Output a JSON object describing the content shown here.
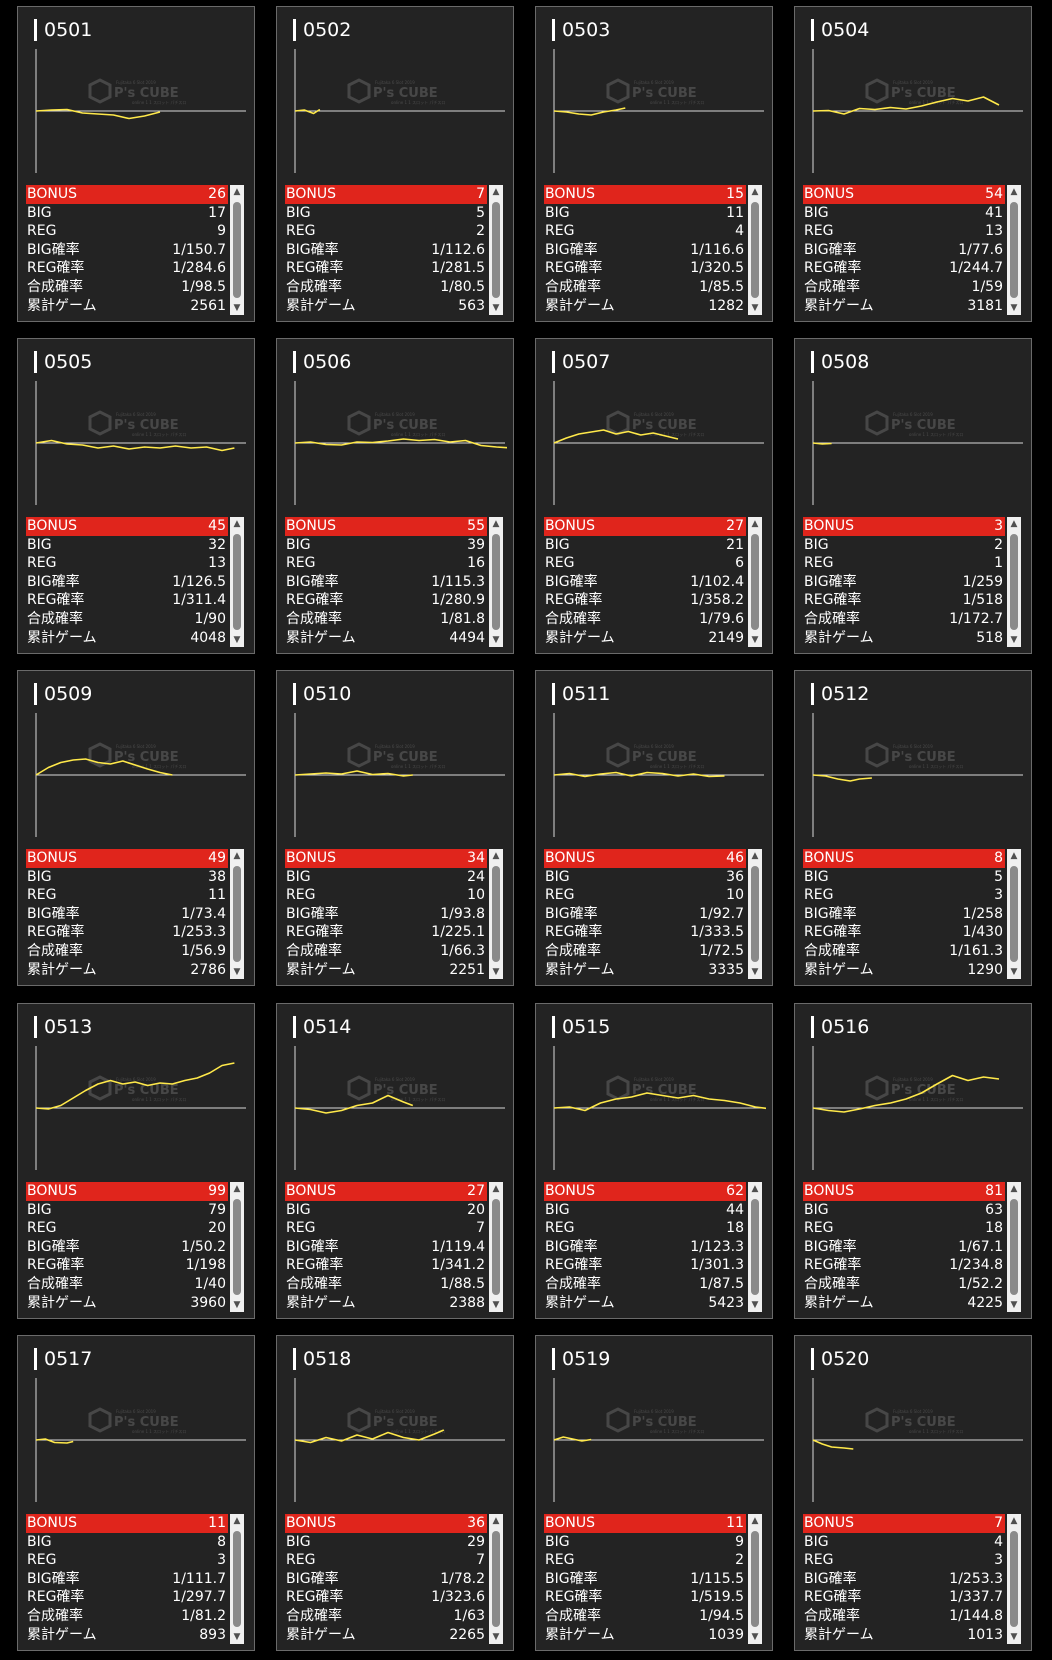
{
  "watermark": {
    "top": "Fujitaka 6 Slot 2019",
    "brand": "P's CUBE",
    "bottom": "online 1 1 スロット パチスロ"
  },
  "line_color": "#ffe94a",
  "bonus_color": "#e0251c",
  "labels": [
    "BONUS",
    "BIG",
    "REG",
    "BIG確率",
    "REG確率",
    "合成確率",
    "累計ゲーム"
  ],
  "scroll_up_icon": "▲",
  "scroll_down_icon": "▼",
  "machines": [
    {
      "id": "0501",
      "stats": [
        "26",
        "17",
        "9",
        "1/150.7",
        "1/284.6",
        "1/98.5",
        "2561"
      ],
      "curve": [
        [
          0,
          0
        ],
        [
          5,
          0.02
        ],
        [
          10,
          0.03
        ],
        [
          15,
          -0.04
        ],
        [
          20,
          -0.06
        ],
        [
          25,
          -0.08
        ],
        [
          30,
          -0.15
        ],
        [
          35,
          -0.1
        ],
        [
          40,
          -0.02
        ]
      ]
    },
    {
      "id": "0502",
      "stats": [
        "7",
        "5",
        "2",
        "1/112.6",
        "1/281.5",
        "1/80.5",
        "563"
      ],
      "curve": [
        [
          0,
          0
        ],
        [
          3,
          0.02
        ],
        [
          6,
          -0.05
        ],
        [
          8,
          0.03
        ]
      ]
    },
    {
      "id": "0503",
      "stats": [
        "15",
        "11",
        "4",
        "1/116.6",
        "1/320.5",
        "1/85.5",
        "1282"
      ],
      "curve": [
        [
          0,
          0
        ],
        [
          4,
          -0.02
        ],
        [
          8,
          -0.06
        ],
        [
          12,
          -0.08
        ],
        [
          16,
          -0.02
        ],
        [
          20,
          0.02
        ],
        [
          23,
          0.06
        ]
      ]
    },
    {
      "id": "0504",
      "stats": [
        "54",
        "41",
        "13",
        "1/77.6",
        "1/244.7",
        "1/59",
        "3181"
      ],
      "curve": [
        [
          0,
          0
        ],
        [
          5,
          0.01
        ],
        [
          10,
          -0.06
        ],
        [
          15,
          0.05
        ],
        [
          20,
          0.03
        ],
        [
          25,
          0.07
        ],
        [
          30,
          0.04
        ],
        [
          35,
          0.1
        ],
        [
          40,
          0.18
        ],
        [
          45,
          0.25
        ],
        [
          50,
          0.2
        ],
        [
          55,
          0.28
        ],
        [
          60,
          0.12
        ]
      ]
    },
    {
      "id": "0505",
      "stats": [
        "45",
        "32",
        "13",
        "1/126.5",
        "1/311.4",
        "1/90",
        "4048"
      ],
      "curve": [
        [
          0,
          0
        ],
        [
          5,
          0.05
        ],
        [
          10,
          -0.02
        ],
        [
          15,
          -0.04
        ],
        [
          20,
          -0.1
        ],
        [
          25,
          -0.06
        ],
        [
          30,
          -0.12
        ],
        [
          35,
          -0.08
        ],
        [
          40,
          -0.1
        ],
        [
          45,
          -0.06
        ],
        [
          50,
          -0.1
        ],
        [
          55,
          -0.08
        ],
        [
          60,
          -0.15
        ],
        [
          64,
          -0.1
        ]
      ]
    },
    {
      "id": "0506",
      "stats": [
        "55",
        "39",
        "16",
        "1/115.3",
        "1/280.9",
        "1/81.8",
        "4494"
      ],
      "curve": [
        [
          0,
          0
        ],
        [
          5,
          0.02
        ],
        [
          10,
          -0.03
        ],
        [
          15,
          -0.04
        ],
        [
          20,
          0.02
        ],
        [
          25,
          0.01
        ],
        [
          30,
          0.04
        ],
        [
          35,
          0.08
        ],
        [
          40,
          0.05
        ],
        [
          45,
          0.07
        ],
        [
          50,
          0.02
        ],
        [
          55,
          0.05
        ],
        [
          60,
          -0.05
        ],
        [
          65,
          -0.08
        ],
        [
          70,
          -0.1
        ],
        [
          73,
          -0.06
        ]
      ]
    },
    {
      "id": "0507",
      "stats": [
        "27",
        "21",
        "6",
        "1/102.4",
        "1/358.2",
        "1/79.6",
        "2149"
      ],
      "curve": [
        [
          0,
          0
        ],
        [
          4,
          0.1
        ],
        [
          8,
          0.18
        ],
        [
          12,
          0.22
        ],
        [
          16,
          0.26
        ],
        [
          20,
          0.18
        ],
        [
          24,
          0.23
        ],
        [
          28,
          0.16
        ],
        [
          32,
          0.2
        ],
        [
          36,
          0.14
        ],
        [
          40,
          0.08
        ]
      ]
    },
    {
      "id": "0508",
      "stats": [
        "3",
        "2",
        "1",
        "1/259",
        "1/518",
        "1/172.7",
        "518"
      ],
      "curve": [
        [
          0,
          0
        ],
        [
          3,
          -0.02
        ],
        [
          6,
          -0.01
        ]
      ]
    },
    {
      "id": "0509",
      "stats": [
        "49",
        "38",
        "11",
        "1/73.4",
        "1/253.3",
        "1/56.9",
        "2786"
      ],
      "curve": [
        [
          0,
          0
        ],
        [
          4,
          0.15
        ],
        [
          8,
          0.25
        ],
        [
          12,
          0.3
        ],
        [
          16,
          0.32
        ],
        [
          20,
          0.25
        ],
        [
          24,
          0.22
        ],
        [
          28,
          0.28
        ],
        [
          32,
          0.2
        ],
        [
          36,
          0.12
        ],
        [
          40,
          0.05
        ],
        [
          44,
          0.0
        ]
      ]
    },
    {
      "id": "0510",
      "stats": [
        "34",
        "24",
        "10",
        "1/93.8",
        "1/225.1",
        "1/66.3",
        "2251"
      ],
      "curve": [
        [
          0,
          0
        ],
        [
          5,
          0.02
        ],
        [
          10,
          0.04
        ],
        [
          15,
          0.02
        ],
        [
          20,
          0.08
        ],
        [
          25,
          0.01
        ],
        [
          30,
          0.03
        ],
        [
          35,
          -0.02
        ],
        [
          38,
          0.0
        ]
      ]
    },
    {
      "id": "0511",
      "stats": [
        "46",
        "36",
        "10",
        "1/92.7",
        "1/333.5",
        "1/72.5",
        "3335"
      ],
      "curve": [
        [
          0,
          0
        ],
        [
          5,
          0.03
        ],
        [
          10,
          -0.03
        ],
        [
          15,
          0.02
        ],
        [
          20,
          0.05
        ],
        [
          25,
          -0.02
        ],
        [
          30,
          0.05
        ],
        [
          35,
          0.03
        ],
        [
          40,
          -0.02
        ],
        [
          45,
          0.02
        ],
        [
          50,
          -0.03
        ],
        [
          55,
          -0.02
        ]
      ]
    },
    {
      "id": "0512",
      "stats": [
        "8",
        "5",
        "3",
        "1/258",
        "1/430",
        "1/161.3",
        "1290"
      ],
      "curve": [
        [
          0,
          0
        ],
        [
          4,
          -0.02
        ],
        [
          8,
          -0.08
        ],
        [
          12,
          -0.12
        ],
        [
          15,
          -0.08
        ],
        [
          19,
          -0.06
        ]
      ]
    },
    {
      "id": "0513",
      "stats": [
        "99",
        "79",
        "20",
        "1/50.2",
        "1/198",
        "1/40",
        "3960"
      ],
      "curve": [
        [
          0,
          0
        ],
        [
          4,
          -0.02
        ],
        [
          8,
          0.05
        ],
        [
          12,
          0.2
        ],
        [
          16,
          0.35
        ],
        [
          20,
          0.48
        ],
        [
          24,
          0.55
        ],
        [
          28,
          0.48
        ],
        [
          32,
          0.52
        ],
        [
          36,
          0.45
        ],
        [
          40,
          0.5
        ],
        [
          44,
          0.48
        ],
        [
          48,
          0.55
        ],
        [
          52,
          0.6
        ],
        [
          56,
          0.7
        ],
        [
          60,
          0.85
        ],
        [
          64,
          0.9
        ]
      ]
    },
    {
      "id": "0514",
      "stats": [
        "27",
        "20",
        "7",
        "1/119.4",
        "1/341.2",
        "1/88.5",
        "2388"
      ],
      "curve": [
        [
          0,
          0
        ],
        [
          5,
          -0.03
        ],
        [
          10,
          -0.1
        ],
        [
          15,
          -0.05
        ],
        [
          20,
          0.05
        ],
        [
          25,
          0.1
        ],
        [
          30,
          0.25
        ],
        [
          35,
          0.12
        ],
        [
          38,
          0.05
        ]
      ]
    },
    {
      "id": "0515",
      "stats": [
        "62",
        "44",
        "18",
        "1/123.3",
        "1/301.3",
        "1/87.5",
        "5423"
      ],
      "curve": [
        [
          0,
          0
        ],
        [
          5,
          0.02
        ],
        [
          10,
          -0.05
        ],
        [
          15,
          0.1
        ],
        [
          20,
          0.18
        ],
        [
          25,
          0.22
        ],
        [
          30,
          0.3
        ],
        [
          35,
          0.25
        ],
        [
          40,
          0.2
        ],
        [
          45,
          0.25
        ],
        [
          50,
          0.18
        ],
        [
          55,
          0.15
        ],
        [
          60,
          0.1
        ],
        [
          65,
          0.02
        ],
        [
          70,
          -0.02
        ]
      ]
    },
    {
      "id": "0516",
      "stats": [
        "81",
        "63",
        "18",
        "1/67.1",
        "1/234.8",
        "1/52.2",
        "4225"
      ],
      "curve": [
        [
          0,
          0
        ],
        [
          5,
          -0.05
        ],
        [
          10,
          -0.08
        ],
        [
          15,
          -0.02
        ],
        [
          20,
          0.05
        ],
        [
          25,
          0.1
        ],
        [
          30,
          0.18
        ],
        [
          35,
          0.3
        ],
        [
          40,
          0.48
        ],
        [
          45,
          0.65
        ],
        [
          50,
          0.55
        ],
        [
          55,
          0.62
        ],
        [
          60,
          0.58
        ]
      ]
    },
    {
      "id": "0517",
      "stats": [
        "11",
        "8",
        "3",
        "1/111.7",
        "1/297.7",
        "1/81.2",
        "893"
      ],
      "curve": [
        [
          0,
          0
        ],
        [
          3,
          0.02
        ],
        [
          6,
          -0.05
        ],
        [
          10,
          -0.06
        ],
        [
          12,
          -0.03
        ]
      ]
    },
    {
      "id": "0518",
      "stats": [
        "36",
        "29",
        "7",
        "1/78.2",
        "1/323.6",
        "1/63",
        "2265"
      ],
      "curve": [
        [
          0,
          0
        ],
        [
          5,
          -0.05
        ],
        [
          10,
          0.05
        ],
        [
          15,
          -0.02
        ],
        [
          20,
          0.1
        ],
        [
          25,
          0.02
        ],
        [
          30,
          0.15
        ],
        [
          35,
          0.05
        ],
        [
          40,
          0.0
        ],
        [
          45,
          0.12
        ],
        [
          48,
          0.2
        ]
      ]
    },
    {
      "id": "0519",
      "stats": [
        "11",
        "9",
        "2",
        "1/115.5",
        "1/519.5",
        "1/94.5",
        "1039"
      ],
      "curve": [
        [
          0,
          0
        ],
        [
          3,
          0.06
        ],
        [
          6,
          0.02
        ],
        [
          9,
          -0.02
        ],
        [
          12,
          0.01
        ]
      ]
    },
    {
      "id": "0520",
      "stats": [
        "7",
        "4",
        "3",
        "1/253.3",
        "1/337.7",
        "1/144.8",
        "1013"
      ],
      "curve": [
        [
          0,
          0
        ],
        [
          3,
          -0.08
        ],
        [
          6,
          -0.14
        ],
        [
          10,
          -0.16
        ],
        [
          13,
          -0.18
        ]
      ]
    }
  ]
}
